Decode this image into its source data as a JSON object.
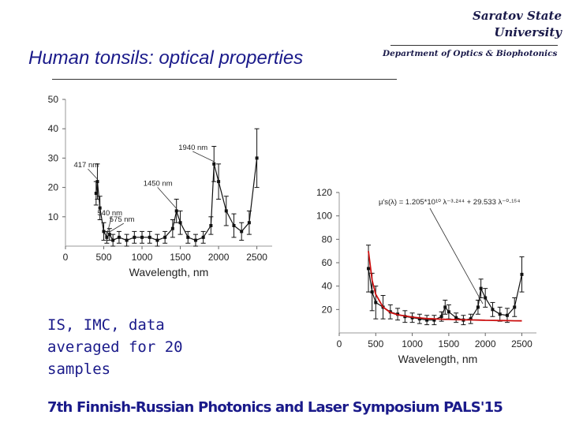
{
  "header": {
    "university_line1": "Saratov State",
    "university_line2": "University",
    "department": "Department of Optics & Biophotonics",
    "title": "Human tonsils: optical properties"
  },
  "note": {
    "line1": "IS, IMC, data",
    "line2": "averaged for 20",
    "line3": "samples"
  },
  "footer": {
    "text": "7th Finnish-Russian Photonics and Laser Symposium PALS'15"
  },
  "chart_data": [
    {
      "type": "line",
      "xlabel": "Wavelength, nm",
      "ylabel": "",
      "xlim": [
        0,
        2700
      ],
      "ylim": [
        0,
        50
      ],
      "xticks": [
        0,
        500,
        1000,
        1500,
        2000,
        2500
      ],
      "yticks": [
        10,
        20,
        30,
        40,
        50
      ],
      "x": [
        400,
        417,
        450,
        500,
        540,
        575,
        620,
        700,
        800,
        900,
        1000,
        1100,
        1200,
        1300,
        1400,
        1450,
        1500,
        1600,
        1700,
        1800,
        1900,
        1940,
        2000,
        2100,
        2200,
        2300,
        2400,
        2500
      ],
      "series": [
        {
          "values": [
            18,
            22,
            13,
            5,
            3,
            4,
            2,
            3,
            2,
            3,
            3,
            3,
            2,
            3,
            6,
            12,
            8,
            3,
            2,
            3,
            7,
            28,
            22,
            12,
            7,
            5,
            8,
            30
          ],
          "errors": [
            4,
            6,
            4,
            3,
            2,
            2,
            2,
            2,
            2,
            2,
            2,
            2,
            2,
            2,
            3,
            4,
            4,
            2,
            2,
            2,
            3,
            6,
            6,
            5,
            4,
            3,
            4,
            10
          ]
        }
      ],
      "annotations": [
        {
          "text": "417 nm",
          "x": 417,
          "y": 22
        },
        {
          "text": "540 nm",
          "x": 540,
          "y": 3
        },
        {
          "text": "575 nm",
          "x": 575,
          "y": 4
        },
        {
          "text": "1450 nm",
          "x": 1450,
          "y": 12
        },
        {
          "text": "1940 nm",
          "x": 1940,
          "y": 28
        }
      ]
    },
    {
      "type": "line",
      "xlabel": "Wavelength, nm",
      "ylabel": "",
      "xlim": [
        0,
        2700
      ],
      "ylim": [
        0,
        120
      ],
      "xticks": [
        0,
        500,
        1000,
        1500,
        2000,
        2500
      ],
      "yticks": [
        20,
        40,
        60,
        80,
        100,
        120
      ],
      "equation": "μ′s(λ) = 1.205*10¹⁰ λ⁻³·²⁴⁴ + 29.533 λ⁻⁰·¹⁵⁴",
      "x": [
        400,
        450,
        500,
        600,
        700,
        800,
        900,
        1000,
        1100,
        1200,
        1300,
        1400,
        1450,
        1500,
        1600,
        1700,
        1800,
        1900,
        1940,
        2000,
        2100,
        2200,
        2300,
        2400,
        2500
      ],
      "series": [
        {
          "values": [
            55,
            35,
            26,
            22,
            18,
            16,
            14,
            13,
            12,
            11,
            11,
            14,
            22,
            18,
            13,
            11,
            12,
            22,
            38,
            30,
            20,
            16,
            15,
            22,
            50
          ],
          "errors": [
            20,
            16,
            14,
            10,
            6,
            5,
            5,
            4,
            4,
            4,
            4,
            4,
            6,
            6,
            4,
            4,
            4,
            6,
            8,
            8,
            6,
            6,
            6,
            8,
            15
          ]
        },
        {
          "values": [
            70,
            45,
            33,
            22,
            17.5,
            15.5,
            14.5,
            13.5,
            12.8,
            12.3,
            12,
            11.7,
            11.6,
            11.5,
            11.3,
            11.2,
            11.1,
            11,
            10.9,
            10.8,
            10.7,
            10.6,
            10.5,
            10.4,
            10.3
          ]
        }
      ]
    }
  ]
}
